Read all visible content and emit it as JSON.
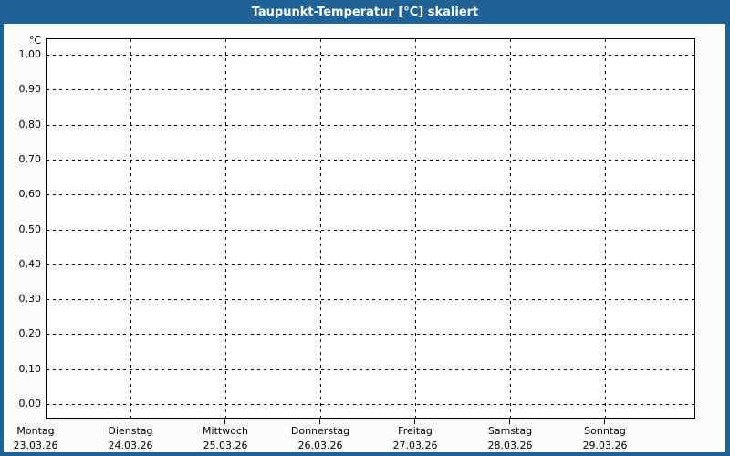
{
  "window": {
    "title": "Taupunkt-Temperatur [°C] skaliert"
  },
  "colors": {
    "accent_blue": "#1f6296",
    "window_background": "#fbfdfa",
    "plot_background": "#ffffff",
    "grid_and_text": "#000000",
    "title_text": "#ffffff"
  },
  "chart_data": {
    "type": "line",
    "title": "Taupunkt-Temperatur [°C] skaliert",
    "series": [],
    "y_axis": {
      "unit": "°C",
      "tick_labels": [
        "1,00",
        "0,90",
        "0,80",
        "0,70",
        "0,60",
        "0,50",
        "0,40",
        "0,30",
        "0,20",
        "0,10",
        "0,00"
      ],
      "tick_values": [
        1.0,
        0.9,
        0.8,
        0.7,
        0.6,
        0.5,
        0.4,
        0.3,
        0.2,
        0.1,
        0.0
      ],
      "range": [
        0.0,
        1.0
      ],
      "decimal_style": "comma"
    },
    "x_axis": {
      "days": [
        {
          "name": "Montag",
          "date": "23.03.26"
        },
        {
          "name": "Dienstag",
          "date": "24.03.26"
        },
        {
          "name": "Mittwoch",
          "date": "25.03.26"
        },
        {
          "name": "Donnerstag",
          "date": "26.03.26"
        },
        {
          "name": "Freitag",
          "date": "27.03.26"
        },
        {
          "name": "Samstag",
          "date": "28.03.26"
        },
        {
          "name": "Sonntag",
          "date": "29.03.26"
        }
      ]
    },
    "grid": {
      "style": "dashed",
      "horizontal_lines": 11,
      "vertical_lines": 6,
      "vertical_lines_at_day_boundaries": true
    },
    "legend": "none",
    "plotted_points": "none (empty chart, no data drawn)"
  }
}
